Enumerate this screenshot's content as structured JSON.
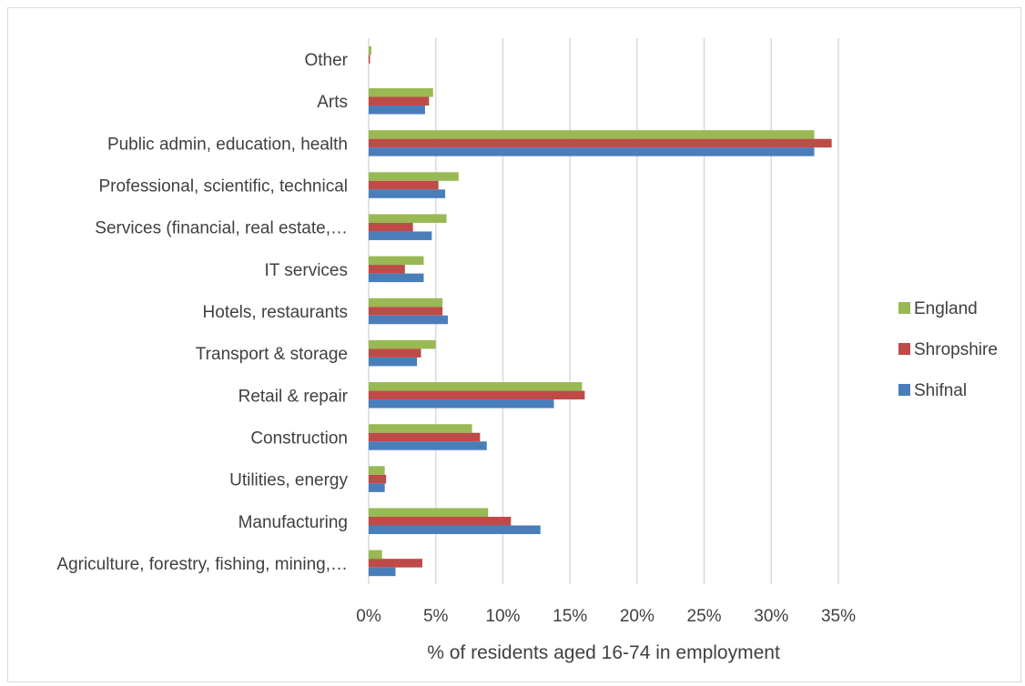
{
  "chart_data": {
    "type": "bar",
    "orientation": "horizontal",
    "categories": [
      "Agriculture, forestry, fishing, mining,…",
      "Manufacturing",
      "Utilities, energy",
      "Construction",
      "Retail & repair",
      "Transport & storage",
      "Hotels, restaurants",
      "IT services",
      "Services (financial, real estate,…",
      "Professional, scientific, technical",
      "Public admin, education, health",
      "Arts",
      "Other"
    ],
    "series": [
      {
        "name": "Shifnal",
        "color": "#4a7ebb",
        "values": [
          2.0,
          12.8,
          1.2,
          8.8,
          13.8,
          3.6,
          5.9,
          4.1,
          4.7,
          5.7,
          33.2,
          4.2,
          0.0
        ]
      },
      {
        "name": "Shropshire",
        "color": "#be4b48",
        "values": [
          4.0,
          10.6,
          1.3,
          8.3,
          16.1,
          3.9,
          5.5,
          2.7,
          3.3,
          5.2,
          34.5,
          4.5,
          0.1
        ]
      },
      {
        "name": "England",
        "color": "#98b954",
        "values": [
          1.0,
          8.9,
          1.2,
          7.7,
          15.9,
          5.0,
          5.5,
          4.1,
          5.8,
          6.7,
          33.2,
          4.8,
          0.2
        ]
      }
    ],
    "xlabel": "% of residents aged 16-74 in employment",
    "ylabel": "",
    "xlim": [
      0,
      35
    ],
    "xticks": [
      "0%",
      "5%",
      "10%",
      "15%",
      "20%",
      "25%",
      "30%",
      "35%"
    ],
    "grid": "vertical",
    "legend_position": "right",
    "legend_order": [
      "England",
      "Shropshire",
      "Shifnal"
    ]
  }
}
